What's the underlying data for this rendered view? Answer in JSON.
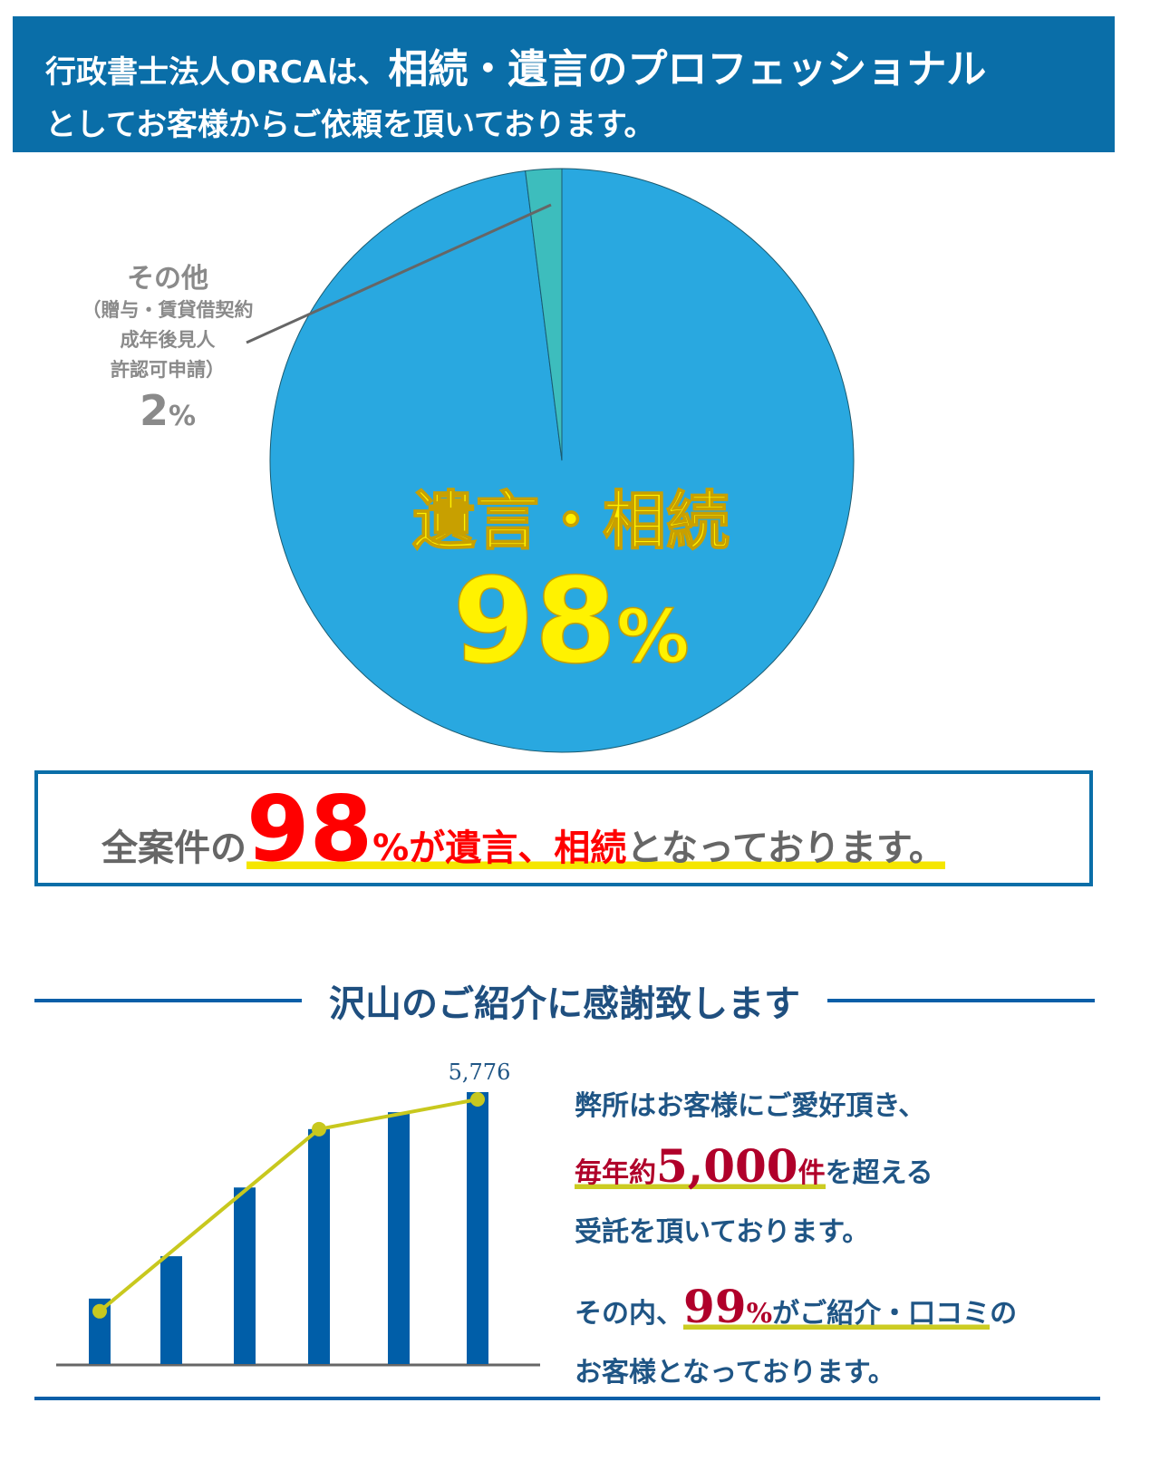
{
  "header": {
    "line1_a": "行政書士法人ORCAは、",
    "line1_b": "相続・遺言のプロフェッショナル",
    "line2": "としてお客様からご依頼を頂いております。"
  },
  "pie": {
    "chart_data": {
      "type": "pie",
      "slices": [
        {
          "label": "遺言・相続",
          "value": 98,
          "color": "#29a8e0"
        },
        {
          "label": "その他",
          "value": 2,
          "color": "#3dbdbd"
        }
      ]
    },
    "other_title": "その他",
    "other_detail": [
      "（贈与・賃貸借契約",
      "成年後見人",
      "許認可申請）"
    ],
    "other_pct": "2",
    "pct_sign": "%",
    "main_title": "遺言・相続",
    "main_pct": "98"
  },
  "summary": {
    "pre": "全案件の",
    "num": "98",
    "pct": "%",
    "mid": "が遺言、相続",
    "post": "となっております。"
  },
  "section_title": "沢山のご紹介に感謝致します",
  "chart_data": {
    "type": "bar",
    "categories": [
      "",
      "",
      "",
      "",
      "",
      ""
    ],
    "values": [
      1390,
      2290,
      3750,
      4990,
      5350,
      5776
    ],
    "data_labels": [
      "",
      "",
      "",
      "",
      "",
      "5,776"
    ],
    "line_points": [
      0,
      3,
      5
    ],
    "bar_color": "#005ea8",
    "line_color": "#c8c81e"
  },
  "right": {
    "l1": "弊所はお客様にご愛好頂き、",
    "l2_red_a": "毎年約",
    "l2_num": "5,000",
    "l2_red_b": "件",
    "l2_post": "を超える",
    "l3": "受託を頂いております。",
    "l4_pre": "その内、",
    "l4_num": "99",
    "l4_pct": "%",
    "l4_mid": "がご紹介・口コミ",
    "l4_post": "の",
    "l5": "お客様となっております。"
  }
}
